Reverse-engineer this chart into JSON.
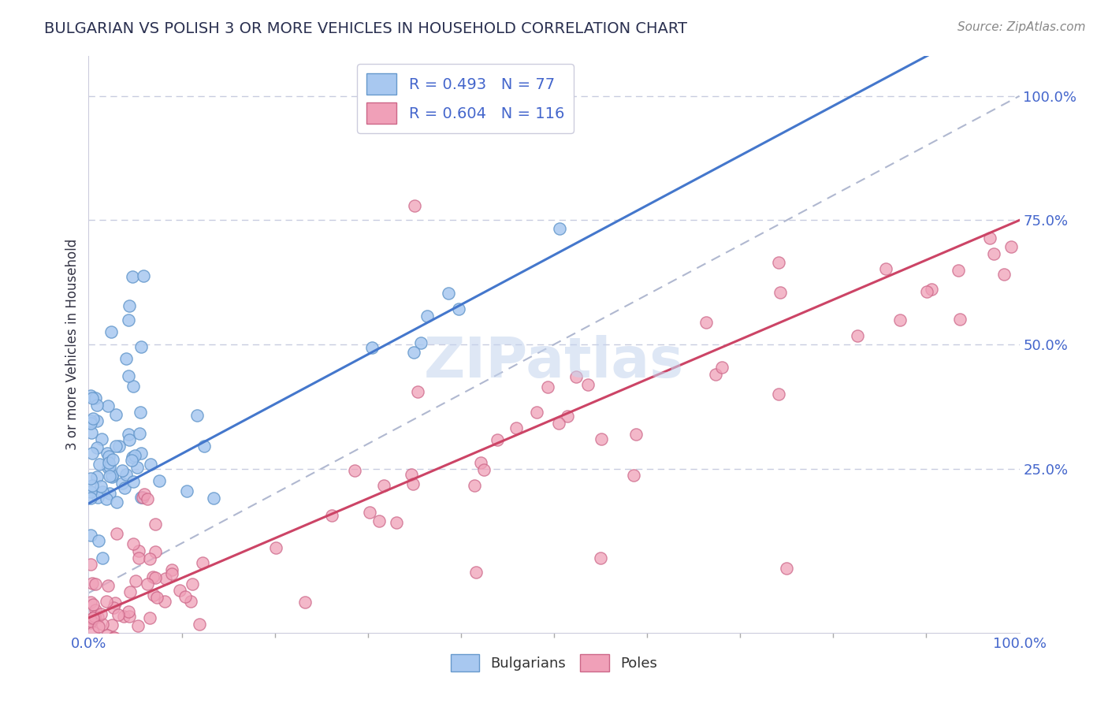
{
  "title": "BULGARIAN VS POLISH 3 OR MORE VEHICLES IN HOUSEHOLD CORRELATION CHART",
  "source_text": "Source: ZipAtlas.com",
  "ylabel": "3 or more Vehicles in Household",
  "xlim": [
    0.0,
    1.0
  ],
  "ylim": [
    -0.08,
    1.08
  ],
  "x_tick_labels": [
    "0.0%",
    "100.0%"
  ],
  "y_tick_labels": [
    "25.0%",
    "50.0%",
    "75.0%",
    "100.0%"
  ],
  "bulgarian_color": "#a8c8f0",
  "bulgarian_edge": "#6699cc",
  "polish_color": "#f0a0b8",
  "polish_edge": "#cc6688",
  "bulgarian_R": 0.493,
  "bulgarian_N": 77,
  "polish_R": 0.604,
  "polish_N": 116,
  "watermark": "ZIPatlas",
  "ref_line_color": "#b0b8d0",
  "bulgarian_line_color": "#4477cc",
  "polish_line_color": "#cc4466",
  "background_color": "#ffffff",
  "grid_color": "#c8cce0",
  "axis_label_color": "#3355aa",
  "tick_label_color": "#4466cc",
  "title_color": "#2a3050",
  "source_color": "#888888"
}
